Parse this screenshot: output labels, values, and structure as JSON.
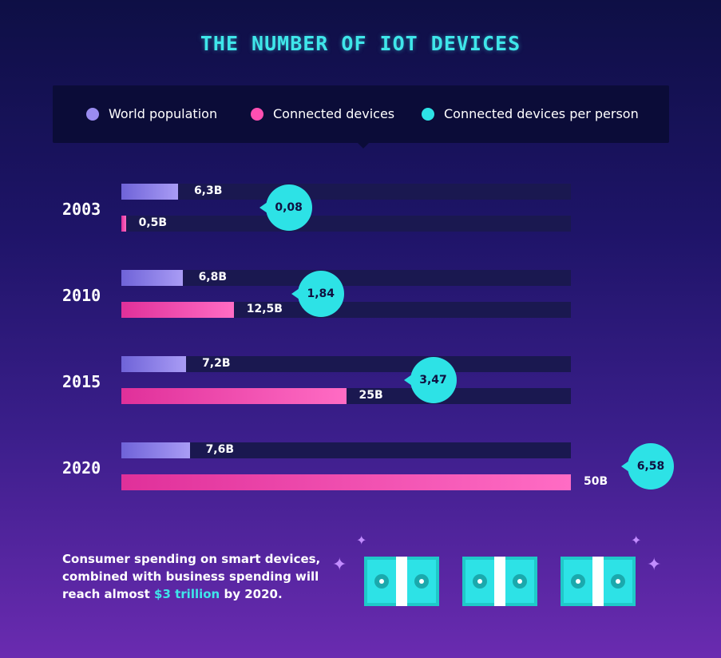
{
  "title": "THE NUMBER OF IOT DEVICES",
  "legend": [
    {
      "label": "World population",
      "color": "#9a8cf0"
    },
    {
      "label": "Connected devices",
      "color": "#ff4fb2"
    },
    {
      "label": "Connected devices per person",
      "color": "#2de2e6"
    }
  ],
  "chart_data": {
    "type": "bar",
    "orientation": "horizontal",
    "title": "THE NUMBER OF IOT DEVICES",
    "categories": [
      "2003",
      "2010",
      "2015",
      "2020"
    ],
    "unit": "billions",
    "series": [
      {
        "name": "World population",
        "values": [
          6.3,
          6.8,
          7.2,
          7.6
        ],
        "labels": [
          "6,3B",
          "6,8B",
          "7,2B",
          "7,6B"
        ]
      },
      {
        "name": "Connected devices",
        "values": [
          0.5,
          12.5,
          25,
          50
        ],
        "labels": [
          "0,5B",
          "12,5B",
          "25B",
          "50B"
        ]
      },
      {
        "name": "Connected devices per person",
        "values": [
          0.08,
          1.84,
          3.47,
          6.58
        ],
        "labels": [
          "0,08",
          "1,84",
          "3,47",
          "6,58"
        ]
      }
    ],
    "xlim": [
      0,
      50
    ]
  },
  "footnote": {
    "text_before": "Consumer spending on smart devices, combined with business spending will reach almost ",
    "highlight": "$3 trillion",
    "text_after": " by 2020."
  },
  "icons": [
    "money-stack-icon",
    "money-stack-icon",
    "money-stack-icon",
    "sparkle-icon"
  ],
  "colors": {
    "accent": "#3fe6ea",
    "population": "#9a8cf0",
    "devices": "#ff4fb2",
    "per_person": "#2de2e6"
  }
}
